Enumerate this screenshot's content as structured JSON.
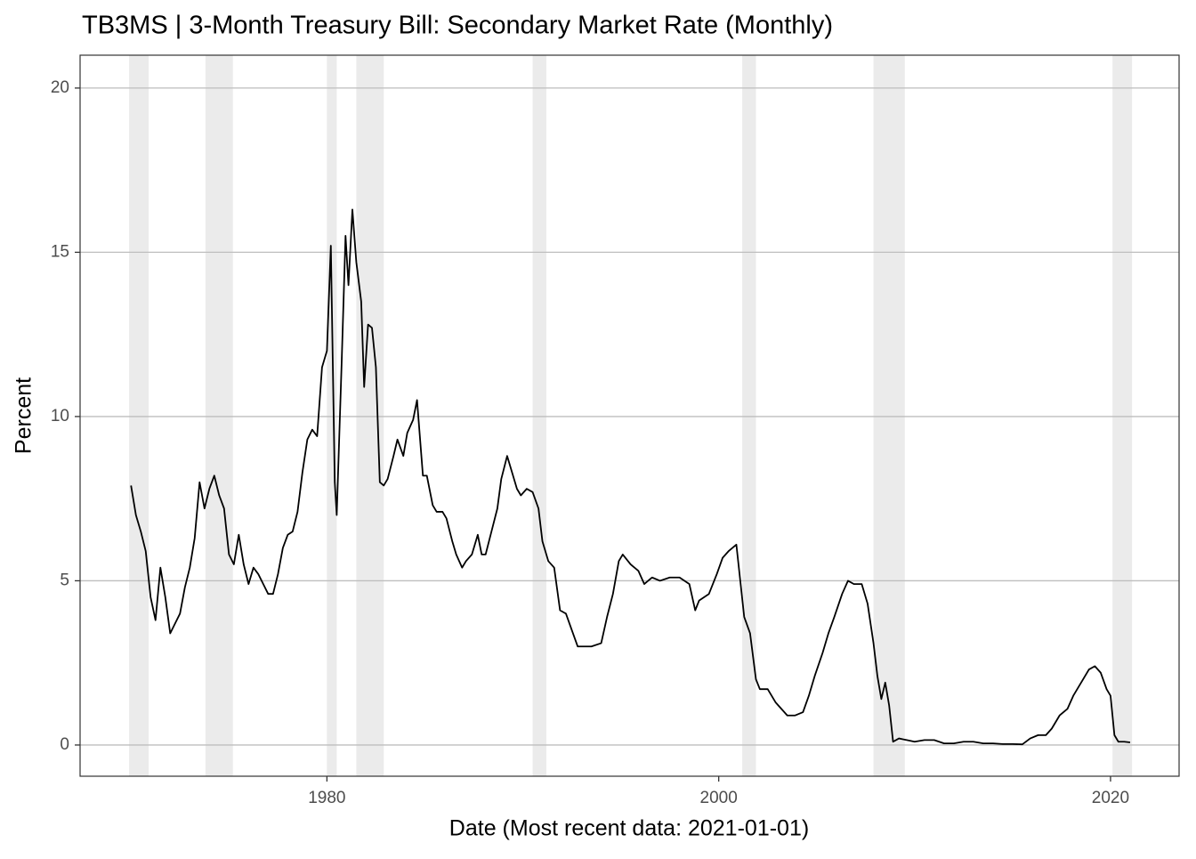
{
  "chart_data": {
    "type": "line",
    "title": "TB3MS | 3-Month Treasury Bill: Secondary Market Rate (Monthly)",
    "x_label": "Date (Most recent data: 2021-01-01)",
    "y_label": "Percent",
    "color": "#000000",
    "recession_color": "#ebebeb",
    "grid": true,
    "xlim": [
      1967.4,
      2023.5
    ],
    "ylim": [
      -0.95,
      21.0
    ],
    "xticks": [
      1980,
      2000,
      2020
    ],
    "yticks": [
      0,
      5,
      10,
      15,
      20
    ],
    "recessions": [
      [
        1969.9,
        1970.9
      ],
      [
        1973.8,
        1975.2
      ],
      [
        1980.0,
        1980.5
      ],
      [
        1981.5,
        1982.9
      ],
      [
        1990.5,
        1991.2
      ],
      [
        2001.2,
        2001.9
      ],
      [
        2007.9,
        2009.5
      ],
      [
        2020.1,
        2021.1
      ]
    ],
    "x": [
      1970.0,
      1970.25,
      1970.5,
      1970.75,
      1971.0,
      1971.25,
      1971.5,
      1971.75,
      1972.0,
      1972.25,
      1972.5,
      1972.75,
      1973.0,
      1973.25,
      1973.5,
      1973.75,
      1974.0,
      1974.25,
      1974.5,
      1974.75,
      1975.0,
      1975.25,
      1975.5,
      1975.75,
      1976.0,
      1976.25,
      1976.5,
      1976.75,
      1977.0,
      1977.25,
      1977.5,
      1977.75,
      1978.0,
      1978.25,
      1978.5,
      1978.75,
      1979.0,
      1979.25,
      1979.5,
      1979.75,
      1980.0,
      1980.2,
      1980.4,
      1980.5,
      1980.75,
      1980.95,
      1981.1,
      1981.3,
      1981.5,
      1981.75,
      1981.9,
      1982.1,
      1982.3,
      1982.5,
      1982.7,
      1982.9,
      1983.1,
      1983.4,
      1983.6,
      1983.9,
      1984.1,
      1984.4,
      1984.6,
      1984.9,
      1985.1,
      1985.4,
      1985.6,
      1985.9,
      1986.1,
      1986.4,
      1986.6,
      1986.9,
      1987.1,
      1987.4,
      1987.7,
      1987.9,
      1988.1,
      1988.4,
      1988.7,
      1988.9,
      1989.2,
      1989.5,
      1989.7,
      1989.9,
      1990.2,
      1990.5,
      1990.8,
      1991.0,
      1991.3,
      1991.6,
      1991.9,
      1992.2,
      1992.5,
      1992.8,
      1993.0,
      1993.5,
      1994.0,
      1994.3,
      1994.6,
      1994.9,
      1995.1,
      1995.5,
      1995.9,
      1996.2,
      1996.6,
      1997.0,
      1997.5,
      1998.0,
      1998.5,
      1998.8,
      1999.0,
      1999.5,
      1999.9,
      2000.2,
      2000.5,
      2000.9,
      2001.1,
      2001.3,
      2001.6,
      2001.9,
      2002.1,
      2002.5,
      2002.9,
      2003.2,
      2003.5,
      2003.9,
      2004.3,
      2004.6,
      2004.9,
      2005.3,
      2005.6,
      2005.9,
      2006.3,
      2006.6,
      2006.9,
      2007.3,
      2007.6,
      2007.9,
      2008.1,
      2008.3,
      2008.5,
      2008.7,
      2008.9,
      2009.2,
      2009.6,
      2010.0,
      2010.5,
      2011.0,
      2011.5,
      2012.0,
      2012.5,
      2013.0,
      2013.5,
      2014.0,
      2014.5,
      2015.0,
      2015.5,
      2015.9,
      2016.3,
      2016.7,
      2017.0,
      2017.4,
      2017.8,
      2018.1,
      2018.5,
      2018.9,
      2019.2,
      2019.5,
      2019.8,
      2020.0,
      2020.2,
      2020.4,
      2020.7,
      2021.0
    ],
    "values": [
      7.9,
      7.0,
      6.5,
      5.9,
      4.5,
      3.8,
      5.4,
      4.5,
      3.4,
      3.7,
      4.0,
      4.8,
      5.4,
      6.3,
      8.0,
      7.2,
      7.8,
      8.2,
      7.6,
      7.2,
      5.8,
      5.5,
      6.4,
      5.5,
      4.9,
      5.4,
      5.2,
      4.9,
      4.6,
      4.6,
      5.2,
      6.0,
      6.4,
      6.5,
      7.1,
      8.3,
      9.3,
      9.6,
      9.4,
      11.5,
      12.0,
      15.2,
      8.0,
      7.0,
      11.6,
      15.5,
      14.0,
      16.3,
      14.7,
      13.5,
      10.9,
      12.8,
      12.7,
      11.5,
      8.0,
      7.9,
      8.1,
      8.8,
      9.3,
      8.8,
      9.5,
      9.9,
      10.5,
      8.2,
      8.2,
      7.3,
      7.1,
      7.1,
      6.9,
      6.2,
      5.8,
      5.4,
      5.6,
      5.8,
      6.4,
      5.8,
      5.8,
      6.5,
      7.2,
      8.1,
      8.8,
      8.2,
      7.8,
      7.6,
      7.8,
      7.7,
      7.2,
      6.2,
      5.6,
      5.4,
      4.1,
      4.0,
      3.5,
      3.0,
      3.0,
      3.0,
      3.1,
      3.9,
      4.6,
      5.6,
      5.8,
      5.5,
      5.3,
      4.9,
      5.1,
      5.0,
      5.1,
      5.1,
      4.9,
      4.1,
      4.4,
      4.6,
      5.2,
      5.7,
      5.9,
      6.1,
      5.0,
      3.9,
      3.4,
      2.0,
      1.7,
      1.7,
      1.3,
      1.1,
      0.9,
      0.9,
      1.0,
      1.5,
      2.1,
      2.8,
      3.4,
      3.9,
      4.6,
      5.0,
      4.9,
      4.9,
      4.3,
      3.1,
      2.1,
      1.4,
      1.9,
      1.2,
      0.1,
      0.2,
      0.15,
      0.1,
      0.15,
      0.15,
      0.05,
      0.05,
      0.1,
      0.1,
      0.05,
      0.05,
      0.03,
      0.03,
      0.02,
      0.2,
      0.3,
      0.3,
      0.5,
      0.9,
      1.1,
      1.5,
      1.9,
      2.3,
      2.4,
      2.2,
      1.7,
      1.5,
      0.3,
      0.1,
      0.1,
      0.08
    ]
  }
}
